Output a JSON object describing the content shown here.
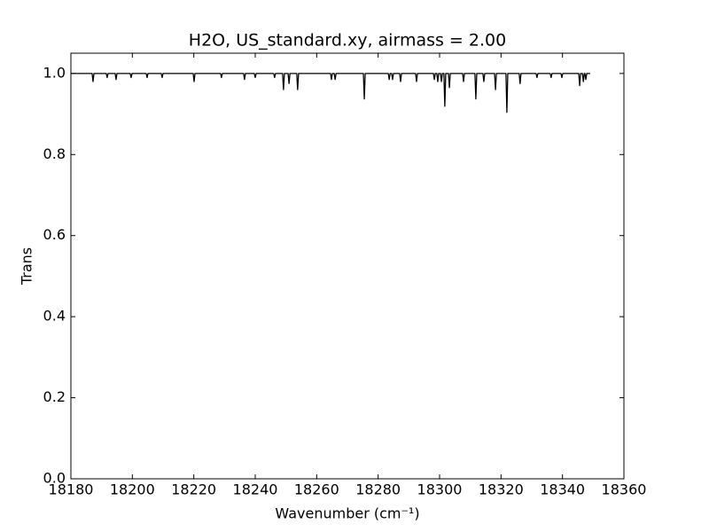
{
  "chart_data": {
    "type": "line",
    "title": "H2O, US_standard.xy, airmass = 2.00",
    "x_label": "Wavenumber (cm⁻¹)",
    "y_label": "Trans",
    "x": [
      18180,
      18186.9,
      18187.2,
      18187.5,
      18191.5,
      18191.8,
      18192.1,
      18194.4,
      18194.7,
      18195.0,
      18199.3,
      18199.6,
      18199.9,
      18204.5,
      18204.8,
      18205.1,
      18209.4,
      18209.7,
      18210.0,
      18219.8,
      18220.1,
      18220.4,
      18228.7,
      18229.0,
      18229.3,
      18236.2,
      18236.5,
      18236.8,
      18239.7,
      18240.0,
      18240.3,
      18246.0,
      18246.3,
      18246.6,
      18248.9,
      18249.2,
      18249.5,
      18250.7,
      18251.0,
      18251.3,
      18253.5,
      18253.8,
      18254.1,
      18264.5,
      18264.8,
      18265.1,
      18265.7,
      18266.0,
      18266.3,
      18275.2,
      18275.5,
      18275.8,
      18283.3,
      18283.6,
      18283.9,
      18284.4,
      18284.7,
      18285.0,
      18287.0,
      18287.3,
      18287.6,
      18292.2,
      18292.5,
      18292.8,
      18298.0,
      18298.3,
      18298.6,
      18299.1,
      18299.4,
      18299.7,
      18300.3,
      18300.6,
      18300.9,
      18301.4,
      18301.7,
      18302.0,
      18302.9,
      18303.2,
      18303.5,
      18307.5,
      18307.8,
      18308.1,
      18311.5,
      18311.8,
      18312.1,
      18314.1,
      18314.4,
      18314.7,
      18317.9,
      18318.2,
      18318.5,
      18321.6,
      18321.9,
      18322.2,
      18325.9,
      18326.2,
      18326.5,
      18331.4,
      18331.7,
      18332.0,
      18336.0,
      18336.3,
      18336.6,
      18339.5,
      18339.8,
      18340.1,
      18345.3,
      18345.6,
      18345.9,
      18346.5,
      18346.8,
      18347.1,
      18347.3,
      18347.6,
      18347.9,
      18349.0
    ],
    "series": [
      {
        "color": "#000000",
        "values": [
          1.0,
          1.0,
          0.98,
          1.0,
          1.0,
          0.99,
          1.0,
          1.0,
          0.985,
          1.0,
          1.0,
          0.99,
          1.0,
          1.0,
          0.99,
          1.0,
          1.0,
          0.99,
          1.0,
          1.0,
          0.98,
          1.0,
          1.0,
          0.99,
          1.0,
          1.0,
          0.985,
          1.0,
          1.0,
          0.99,
          1.0,
          1.0,
          0.99,
          1.0,
          1.0,
          0.96,
          1.0,
          1.0,
          0.975,
          1.0,
          1.0,
          0.96,
          1.0,
          1.0,
          0.985,
          1.0,
          1.0,
          0.985,
          1.0,
          1.0,
          0.937,
          1.0,
          1.0,
          0.985,
          1.0,
          1.0,
          0.985,
          1.0,
          1.0,
          0.98,
          1.0,
          1.0,
          0.98,
          1.0,
          1.0,
          0.985,
          1.0,
          1.0,
          0.98,
          1.0,
          1.0,
          0.98,
          1.0,
          1.0,
          0.919,
          1.0,
          1.0,
          0.965,
          1.0,
          1.0,
          0.98,
          1.0,
          1.0,
          0.937,
          1.0,
          1.0,
          0.98,
          1.0,
          1.0,
          0.96,
          1.0,
          1.0,
          0.904,
          1.0,
          1.0,
          0.975,
          1.0,
          1.0,
          0.99,
          1.0,
          1.0,
          0.99,
          1.0,
          1.0,
          0.99,
          1.0,
          1.0,
          0.97,
          1.0,
          1.0,
          0.98,
          1.0,
          1.0,
          0.985,
          1.0,
          1.0
        ]
      }
    ],
    "xlim": [
      18180,
      18360
    ],
    "ylim": [
      0,
      1.05
    ],
    "xticks": [
      18180,
      18200,
      18220,
      18240,
      18260,
      18280,
      18300,
      18320,
      18340,
      18360
    ],
    "yticks": [
      {
        "value": 0,
        "label": "0.0"
      },
      0.2,
      0.4,
      0.6,
      0.8,
      {
        "value": 1,
        "label": "1.0"
      }
    ]
  }
}
